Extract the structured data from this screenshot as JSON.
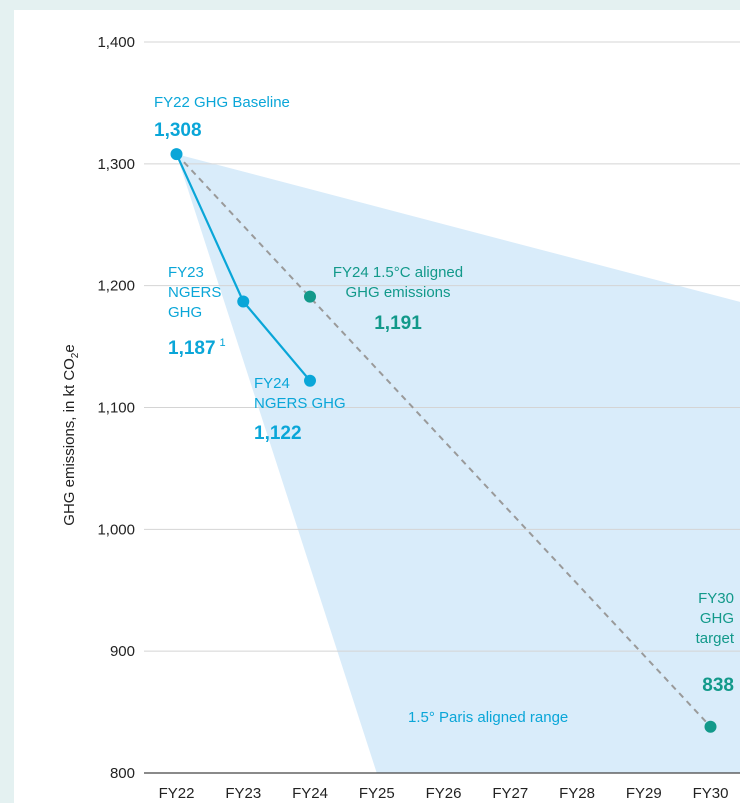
{
  "chart_data": {
    "type": "line",
    "categories": [
      "FY22",
      "FY23",
      "FY24",
      "FY25",
      "FY26",
      "FY27",
      "FY28",
      "FY29",
      "FY30"
    ],
    "ylabel": "GHG emissions, in kt CO",
    "ylabel_sub": "2",
    "ylabel_suffix": "e",
    "ylim": [
      800,
      1400
    ],
    "yticks": [
      "800",
      "900",
      "1,000",
      "1,100",
      "1,200",
      "1,300",
      "1,400"
    ],
    "grid": "horizontal",
    "series": [
      {
        "name": "NGERS GHG",
        "color": "#0aa6d8",
        "x": [
          "FY22",
          "FY23",
          "FY24"
        ],
        "values": [
          1308,
          1187,
          1122
        ]
      },
      {
        "name": "1.5°C aligned GHG emissions",
        "color": "#12998a",
        "style": "dashed-gray",
        "x": [
          "FY22",
          "FY30"
        ],
        "values": [
          1308,
          838
        ]
      }
    ],
    "range": {
      "name": "1.5° Paris aligned range",
      "color": "#d9ecfa",
      "upper": {
        "x": [
          "FY22",
          "FY30"
        ],
        "values": [
          1308,
          1193
        ]
      },
      "lower": {
        "x": [
          "FY22",
          "FY25"
        ],
        "values": [
          1308,
          800
        ]
      }
    },
    "extra_points": [
      {
        "x": "FY24",
        "value": 1191,
        "color": "#12998a"
      },
      {
        "x": "FY30",
        "value": 838,
        "color": "#12998a"
      }
    ],
    "annotations": [
      {
        "id": "baseline",
        "lines": [
          "FY22 GHG Baseline"
        ],
        "value": "1,308",
        "color": "#0aa6d8",
        "align": "start"
      },
      {
        "id": "fy23",
        "lines": [
          "FY23",
          "NGERS",
          "GHG"
        ],
        "value": "1,187",
        "footnote": "1",
        "color": "#0aa6d8",
        "align": "start"
      },
      {
        "id": "fy24",
        "lines": [
          "FY24",
          "NGERS GHG"
        ],
        "value": "1,122",
        "color": "#0aa6d8",
        "align": "start"
      },
      {
        "id": "aligned",
        "lines": [
          "FY24 1.5°C aligned",
          "GHG emissions"
        ],
        "value": "1,191",
        "color": "#12998a",
        "align": "middle"
      },
      {
        "id": "target",
        "lines": [
          "FY30",
          "GHG",
          "target"
        ],
        "value": "838",
        "color": "#12998a",
        "align": "end"
      },
      {
        "id": "range",
        "lines": [
          "1.5° Paris aligned range"
        ],
        "value": "",
        "color": "#0aa6d8",
        "align": "start"
      }
    ]
  }
}
